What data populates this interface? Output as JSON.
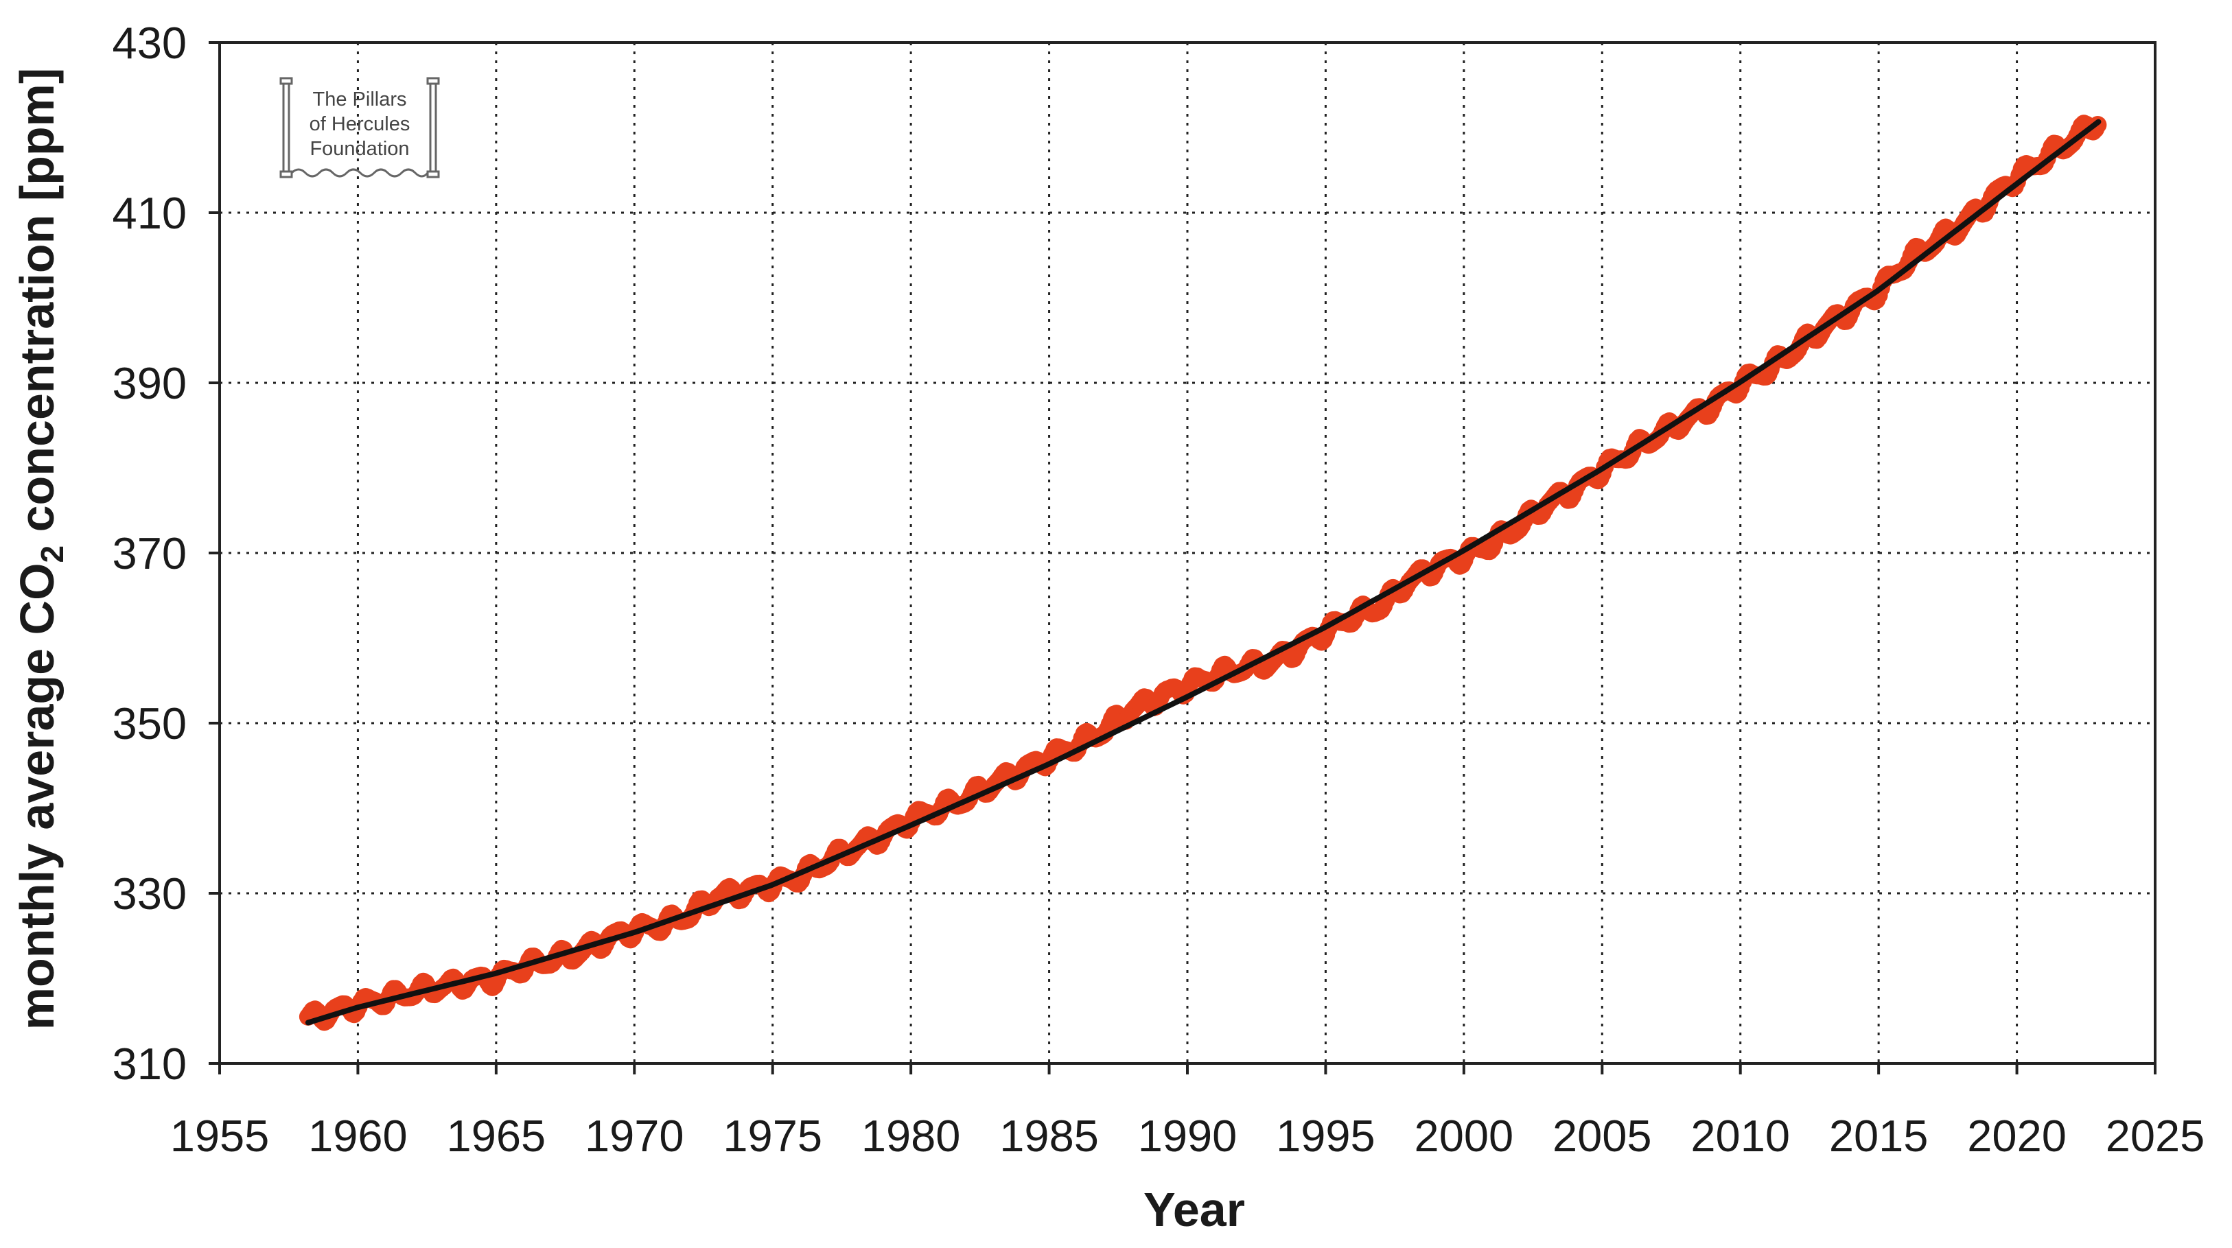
{
  "chart_data": {
    "type": "scatter",
    "title": "",
    "xlabel": "Year",
    "ylabel_prefix": "monthly average CO",
    "ylabel_subscript": "2",
    "ylabel_suffix": " concentration [ppm]",
    "xlim": [
      1955,
      2025
    ],
    "ylim": [
      310,
      430
    ],
    "x_ticks": [
      1955,
      1960,
      1965,
      1970,
      1975,
      1980,
      1985,
      1990,
      1995,
      2000,
      2005,
      2010,
      2015,
      2020,
      2025
    ],
    "y_ticks": [
      310,
      330,
      350,
      370,
      390,
      410,
      430
    ],
    "grid": true,
    "grid_style": "dotted",
    "colors": {
      "data": "#e8401c",
      "trend": "#111111",
      "grid": "#222222",
      "axis": "#222222"
    },
    "series": [
      {
        "kind": "monthly-points",
        "x_step": 0.0833,
        "x": [
          1958.2,
          1959,
          1960,
          1961,
          1962,
          1963,
          1964,
          1965,
          1966,
          1967,
          1968,
          1969,
          1970,
          1971,
          1972,
          1973,
          1974,
          1975,
          1976,
          1977,
          1978,
          1979,
          1980,
          1981,
          1982,
          1983,
          1984,
          1985,
          1986,
          1987,
          1988,
          1989,
          1990,
          1991,
          1992,
          1993,
          1994,
          1995,
          1996,
          1997,
          1998,
          1999,
          2000,
          2001,
          2002,
          2003,
          2004,
          2005,
          2006,
          2007,
          2008,
          2009,
          2010,
          2011,
          2012,
          2013,
          2014,
          2015,
          2016,
          2017,
          2018,
          2019,
          2020,
          2021,
          2022,
          2023
        ],
        "y": [
          315.3,
          316.0,
          316.9,
          317.6,
          318.4,
          319.0,
          319.6,
          320.0,
          321.4,
          322.2,
          323.0,
          324.6,
          325.7,
          326.3,
          327.5,
          329.7,
          330.2,
          331.1,
          332.0,
          333.8,
          335.4,
          336.8,
          338.7,
          339.9,
          341.1,
          342.9,
          344.4,
          346.0,
          347.4,
          349.2,
          351.6,
          353.1,
          354.4,
          355.6,
          356.5,
          357.1,
          358.8,
          360.8,
          362.6,
          363.7,
          366.7,
          368.4,
          369.6,
          371.1,
          373.2,
          375.8,
          377.5,
          379.8,
          381.9,
          383.8,
          385.6,
          387.4,
          389.9,
          391.6,
          393.9,
          396.5,
          398.6,
          400.8,
          404.2,
          406.5,
          408.5,
          411.4,
          414.2,
          416.4,
          418.5,
          421.0
        ]
      },
      {
        "kind": "trend-line",
        "x": [
          1958.2,
          1960,
          1965,
          1970,
          1975,
          1980,
          1985,
          1990,
          1995,
          2000,
          2005,
          2010,
          2015,
          2020,
          2023
        ],
        "y": [
          314.8,
          316.6,
          320.6,
          325.4,
          331.0,
          338.0,
          345.2,
          353.1,
          361.3,
          370.3,
          379.9,
          390.1,
          400.9,
          413.4,
          420.8
        ]
      }
    ]
  },
  "logo": {
    "lines": [
      "The Pillars",
      "of Hercules",
      "Foundation"
    ]
  }
}
